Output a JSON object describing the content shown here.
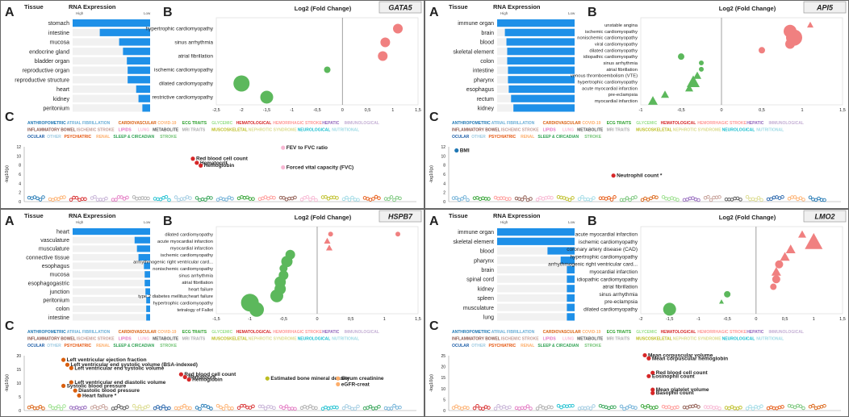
{
  "common": {
    "rna_title": "RNA Expression",
    "tissue_title": "Tissue",
    "high": "High",
    "low": "Low",
    "log2_title": "Log2 (Fold Change)",
    "ylabel_c": "-log10(p)",
    "label_a": "A",
    "label_b": "B",
    "label_c": "C",
    "xticks": [
      "-2,5",
      "-2",
      "-1,5",
      "-1",
      "-0,5",
      "0",
      "0,5",
      "1",
      "1,5"
    ]
  },
  "colors": {
    "bar": "#1e90e8",
    "up": "#f08080",
    "down": "#5cb85c"
  },
  "traits_line1": [
    {
      "t": "ANTHROPOMETRIC",
      "c": "#1f77b4"
    },
    {
      "t": "ATRIAL FIBRILLATION",
      "c": "#6baed6"
    },
    {
      "t": "CARDIOVASCULAR",
      "c": "#d95f0e"
    },
    {
      "t": "COVID-19",
      "c": "#fdae6b"
    },
    {
      "t": "ECG TRAITS",
      "c": "#2ca02c"
    },
    {
      "t": "GLYCEMIC",
      "c": "#98df8a"
    },
    {
      "t": "HEMATOLOGICAL",
      "c": "#d62728"
    },
    {
      "t": "HEMORRHAGIC STROKE",
      "c": "#ff9896"
    },
    {
      "t": "HEPATIC",
      "c": "#9467bd"
    },
    {
      "t": "IMMUNOLOGICAL",
      "c": "#c5b0d5"
    }
  ],
  "traits_line2": [
    {
      "t": "INFLAMMATORY BOWEL",
      "c": "#8c564b"
    },
    {
      "t": "ISCHEMIC STROKE",
      "c": "#c49c94"
    },
    {
      "t": "LIPIDS",
      "c": "#e377c2"
    },
    {
      "t": "LUNG",
      "c": "#f7b6d2"
    },
    {
      "t": "METABOLITE",
      "c": "#555555"
    },
    {
      "t": "MRI TRAITS",
      "c": "#aaaaaa"
    },
    {
      "t": "MUSCOSKELETAL",
      "c": "#bcbd22"
    },
    {
      "t": "NEPHROTIC SYNDROME",
      "c": "#dbdb8d"
    },
    {
      "t": "NEUROLOGICAL",
      "c": "#17becf"
    },
    {
      "t": "NUTRITIONAL",
      "c": "#9edae5"
    }
  ],
  "traits_line3": [
    {
      "t": "OCULAR",
      "c": "#1f5fa8"
    },
    {
      "t": "OTHER",
      "c": "#9ecae1"
    },
    {
      "t": "PSYCHIATRIC",
      "c": "#e6550d"
    },
    {
      "t": "RENAL",
      "c": "#fdae6b"
    },
    {
      "t": "SLEEP & CIRCADIAN",
      "c": "#31a354"
    },
    {
      "t": "STROKE",
      "c": "#74c476"
    }
  ],
  "panels": [
    {
      "gene": "GATA5",
      "tissues": [
        "stomach",
        "intestine",
        "mucosa",
        "endocrine gland",
        "bladder organ",
        "reproductive organ",
        "reproductive structure",
        "heart",
        "kidney",
        "peritonium"
      ],
      "expr": [
        1.0,
        0.65,
        0.4,
        0.35,
        0.3,
        0.29,
        0.29,
        0.18,
        0.15,
        0.1
      ],
      "chart_data": {
        "type": "scatter",
        "xlim": [
          -2.5,
          1.5
        ],
        "labels": [
          "hypertrophic cardiomyopathy",
          "sinus arrhythmia",
          "atrial fibrillation",
          "ischemic cardiomyopathy",
          "dilated cardiomyopathy",
          "restrictive cardiomyopathy"
        ],
        "values": [
          1.1,
          0.85,
          0.8,
          -0.3,
          -2.0,
          -1.5
        ],
        "sizes": [
          6,
          6,
          6,
          4,
          10,
          8
        ],
        "shapes": [
          "c",
          "c",
          "c",
          "c",
          "c",
          "c"
        ]
      },
      "c_ymax": 12,
      "c_yticks": [
        "0",
        "2",
        "4",
        "6",
        "8",
        "10",
        "12"
      ],
      "annotations": [
        {
          "t": "FEV to FVC ratio",
          "x": 0.66,
          "y": 11.8,
          "c": "#f7b6d2"
        },
        {
          "t": "Red blood cell count",
          "x": 0.43,
          "y": 9.4,
          "c": "#d62728"
        },
        {
          "t": "Hematocrit",
          "x": 0.44,
          "y": 8.5,
          "c": "#d62728"
        },
        {
          "t": "Hemoglobin",
          "x": 0.45,
          "y": 7.9,
          "c": "#d62728"
        },
        {
          "t": "Forced vital capacity (FVC)",
          "x": 0.66,
          "y": 7.5,
          "c": "#f7b6d2"
        }
      ]
    },
    {
      "gene": "API5",
      "tissues": [
        "immune organ",
        "brain",
        "blood",
        "skeletal element",
        "colon",
        "intestine",
        "pharynx",
        "esophagus",
        "rectum",
        "kidney"
      ],
      "expr": [
        1.0,
        0.9,
        0.88,
        0.87,
        0.87,
        0.86,
        0.86,
        0.85,
        0.82,
        0.79
      ],
      "chart_data": {
        "type": "scatter",
        "xlim": [
          -1,
          1.5
        ],
        "labels": [
          "unstable angina",
          "ischemic cardiomyopathy",
          "nonischemic cardiomyopathy",
          "viral cardiomyopathy",
          "dilated cardiomyopathy",
          "idiopathic cardiomyopathy",
          "sinus arrhythmia",
          "atrial fibrillation",
          "venous thromboembolism (VTE)",
          "hypertrophic cardiomyopathy",
          "acute myocardial infarction",
          "pre-eclampsia",
          "myocardial infarction"
        ],
        "values": [
          1.1,
          0.85,
          0.9,
          0.85,
          0.5,
          -0.5,
          -0.25,
          -0.25,
          -0.3,
          -0.35,
          -0.4,
          -0.7,
          -0.85
        ],
        "sizes": [
          4,
          8,
          10,
          6,
          4,
          4,
          3,
          3,
          5,
          8,
          5,
          5,
          6
        ],
        "shapes": [
          "t",
          "c",
          "c",
          "c",
          "c",
          "c",
          "c",
          "c",
          "t",
          "t",
          "t",
          "t",
          "t"
        ]
      },
      "c_ymax": 12,
      "c_yticks": [
        "0",
        "2",
        "4",
        "6",
        "8",
        "10",
        "12"
      ],
      "annotations": [
        {
          "t": "BMI",
          "x": 0.02,
          "y": 11.2,
          "c": "#1f77b4"
        },
        {
          "t": "Neutrophil count *",
          "x": 0.42,
          "y": 5.7,
          "c": "#d62728"
        }
      ]
    },
    {
      "gene": "HSPB7",
      "tissues": [
        "heart",
        "vasculature",
        "musculature",
        "connective tissue",
        "esophagus",
        "mucosa",
        "esophagogastric",
        "junction",
        "peritonium",
        "colon",
        "intestine"
      ],
      "expr": [
        1.0,
        0.2,
        0.17,
        0.15,
        0.08,
        0.07,
        0.07,
        0.06,
        0.05,
        0.05,
        0.05
      ],
      "chart_data": {
        "type": "scatter",
        "xlim": [
          -1.5,
          1.5
        ],
        "labels": [
          "dilated cardiomyopathy",
          "acute myocardial infarction",
          "myocardial infarction",
          "ischemic cardiomyopathy",
          "arrhythmogenic right ventricular card...",
          "nonischemic cardiomyopathy",
          "sinus arrhythmia",
          "atrial fibrillation",
          "heart failure",
          "type 2 diabetes mellitus;heart failure",
          "hypertrophic cardiomyopathy",
          "tetralogy of Fallot"
        ],
        "values": [
          0.2,
          0.15,
          0.18,
          -0.4,
          -0.45,
          -0.5,
          -0.5,
          -0.55,
          -0.55,
          -0.6,
          -1.0,
          -0.9
        ],
        "sizes": [
          3,
          4,
          4,
          6,
          7,
          5,
          6,
          7,
          7,
          8,
          11,
          9
        ],
        "shapes": [
          "c",
          "t",
          "t",
          "c",
          "c",
          "c",
          "c",
          "c",
          "c",
          "c",
          "c",
          "c"
        ],
        "extra": {
          "x": 1.2,
          "y": 0
        }
      },
      "c_ymax": 20,
      "c_yticks": [
        "0",
        "5",
        "10",
        "15",
        "20"
      ],
      "annotations": [
        {
          "t": "Left ventricular ejection fraction",
          "x": 0.1,
          "y": 18.5,
          "c": "#d95f0e"
        },
        {
          "t": "Left ventricular end systolic volume (BSA-indexed)",
          "x": 0.11,
          "y": 16.7,
          "c": "#d95f0e"
        },
        {
          "t": "Left ventricular end systolic volume",
          "x": 0.12,
          "y": 15.5,
          "c": "#d95f0e"
        },
        {
          "t": "Red blood cell count",
          "x": 0.4,
          "y": 13.2,
          "c": "#d62728"
        },
        {
          "t": "Hematocrit",
          "x": 0.41,
          "y": 12.2,
          "c": "#d62728"
        },
        {
          "t": "Hemoglobin",
          "x": 0.42,
          "y": 11.3,
          "c": "#d62728"
        },
        {
          "t": "Estimated bone mineral density",
          "x": 0.62,
          "y": 11.7,
          "c": "#bcbd22"
        },
        {
          "t": "Serum creatinine",
          "x": 0.8,
          "y": 11.7,
          "c": "#fdae6b"
        },
        {
          "t": "Left ventricular end diastolic volume",
          "x": 0.12,
          "y": 10.3,
          "c": "#d95f0e"
        },
        {
          "t": "eGFR-creat",
          "x": 0.8,
          "y": 9.6,
          "c": "#fdae6b"
        },
        {
          "t": "Systolic blood pressure",
          "x": 0.1,
          "y": 9.0,
          "c": "#d95f0e"
        },
        {
          "t": "Diastolic blood pressure",
          "x": 0.13,
          "y": 7.3,
          "c": "#d95f0e"
        },
        {
          "t": "Heart failure *",
          "x": 0.14,
          "y": 5.5,
          "c": "#d95f0e"
        }
      ]
    },
    {
      "gene": "LMO2",
      "tissues": [
        "immune organ",
        "skeletal element",
        "blood",
        "pharynx",
        "brain",
        "spinal cord",
        "kidney",
        "spleen",
        "musculature",
        "lung"
      ],
      "expr": [
        1.0,
        1.0,
        0.35,
        0.18,
        0.1,
        0.1,
        0.1,
        0.1,
        0.1,
        0.1
      ],
      "chart_data": {
        "type": "scatter",
        "xlim": [
          -2,
          1.5
        ],
        "labels": [
          "acute myocardial infarction",
          "ischemic cardiomyopathy",
          "coronary artery disease (CAD)",
          "hypertrophic cardiomyopathy",
          "arrhythmogenic right ventricular card...",
          "myocardial infarction",
          "idiopathic cardiomyopathy",
          "atrial fibrillation",
          "sinus arrhythmia",
          "pre-eclampsia",
          "dilated cardiomyopathy"
        ],
        "values": [
          0.8,
          1.0,
          0.6,
          0.5,
          0.4,
          0.35,
          0.35,
          0.3,
          -0.5,
          -0.6,
          -1.5
        ],
        "sizes": [
          5,
          11,
          6,
          6,
          5,
          6,
          5,
          4,
          4,
          3,
          8
        ],
        "shapes": [
          "t",
          "t",
          "t",
          "t",
          "c",
          "t",
          "c",
          "c",
          "c",
          "t",
          "c"
        ]
      },
      "c_ymax": 25,
      "c_yticks": [
        "0",
        "5",
        "10",
        "15",
        "20",
        "25"
      ],
      "annotations": [
        {
          "t": "Mean corpuscular volume",
          "x": 0.5,
          "y": 25.2,
          "c": "#d62728"
        },
        {
          "t": "Mean corpuscular hemoglobin",
          "x": 0.51,
          "y": 23.8,
          "c": "#d62728"
        },
        {
          "t": "Red blood cell count",
          "x": 0.52,
          "y": 17.2,
          "c": "#d62728"
        },
        {
          "t": "Eosinophil count",
          "x": 0.51,
          "y": 15.7,
          "c": "#d62728"
        },
        {
          "t": "Mean platelet volume",
          "x": 0.52,
          "y": 9.5,
          "c": "#d62728"
        },
        {
          "t": "Basophil count",
          "x": 0.52,
          "y": 8.0,
          "c": "#d62728"
        }
      ]
    }
  ]
}
